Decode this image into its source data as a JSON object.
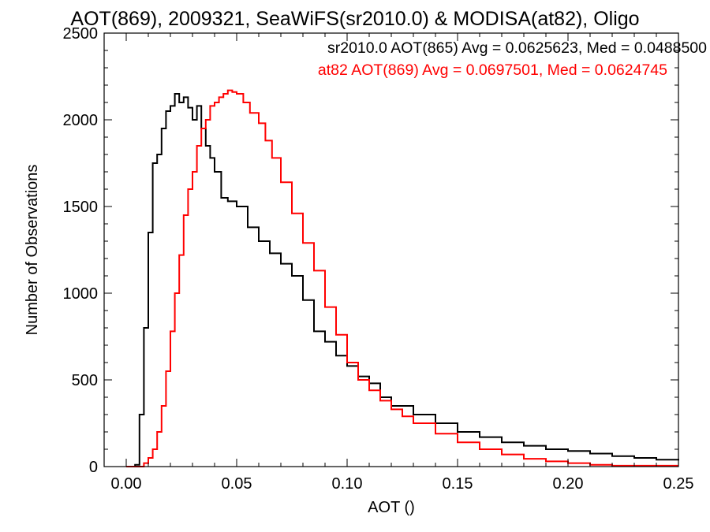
{
  "chart_data": {
    "type": "line",
    "title": "AOT(869), 2009321, SeaWiFS(sr2010.0) & MODISA(at82), Oligo",
    "xlabel": "AOT ()",
    "ylabel": "Number of Observations",
    "xlim": [
      -0.01,
      0.25
    ],
    "ylim": [
      0,
      2500
    ],
    "x_ticks": [
      0.0,
      0.05,
      0.1,
      0.15,
      0.2,
      0.25
    ],
    "x_tick_labels": [
      "0.00",
      "0.05",
      "0.10",
      "0.15",
      "0.20",
      "0.25"
    ],
    "y_ticks": [
      0,
      500,
      1000,
      1500,
      2000,
      2500
    ],
    "y_tick_labels": [
      "0",
      "500",
      "1000",
      "1500",
      "2000",
      "2500"
    ],
    "grid": false,
    "legend_placement": "top-right",
    "series": [
      {
        "name": "sr2010.0",
        "legend_text": "sr2010.0 AOT(865) Avg = 0.0625623, Med = 0.0488500",
        "color": "#000000",
        "x": [
          0.0,
          0.002,
          0.004,
          0.006,
          0.008,
          0.01,
          0.012,
          0.014,
          0.016,
          0.018,
          0.02,
          0.022,
          0.024,
          0.026,
          0.028,
          0.03,
          0.032,
          0.034,
          0.036,
          0.038,
          0.04,
          0.043,
          0.046,
          0.05,
          0.055,
          0.06,
          0.065,
          0.07,
          0.075,
          0.08,
          0.085,
          0.09,
          0.095,
          0.1,
          0.105,
          0.11,
          0.115,
          0.12,
          0.13,
          0.14,
          0.15,
          0.16,
          0.17,
          0.18,
          0.19,
          0.2,
          0.21,
          0.22,
          0.23,
          0.24,
          0.25
        ],
        "y": [
          0,
          0,
          10,
          300,
          800,
          1350,
          1750,
          1800,
          1950,
          2050,
          2080,
          2150,
          2100,
          2130,
          2070,
          2000,
          2080,
          1950,
          1850,
          1780,
          1700,
          1550,
          1530,
          1500,
          1380,
          1300,
          1230,
          1170,
          1100,
          960,
          780,
          720,
          640,
          580,
          520,
          480,
          400,
          350,
          300,
          250,
          200,
          170,
          140,
          120,
          100,
          90,
          75,
          60,
          50,
          40,
          35
        ]
      },
      {
        "name": "at82",
        "legend_text": "at82 AOT(869) Avg = 0.0697501, Med = 0.0624745",
        "color": "#ff0000",
        "x": [
          0.0,
          0.005,
          0.008,
          0.01,
          0.012,
          0.014,
          0.016,
          0.018,
          0.02,
          0.022,
          0.024,
          0.026,
          0.028,
          0.03,
          0.032,
          0.034,
          0.036,
          0.038,
          0.04,
          0.042,
          0.044,
          0.046,
          0.048,
          0.05,
          0.053,
          0.056,
          0.06,
          0.063,
          0.066,
          0.07,
          0.075,
          0.08,
          0.085,
          0.09,
          0.095,
          0.1,
          0.105,
          0.11,
          0.115,
          0.12,
          0.125,
          0.13,
          0.14,
          0.15,
          0.16,
          0.17,
          0.18,
          0.19,
          0.2,
          0.21,
          0.22,
          0.25
        ],
        "y": [
          0,
          0,
          20,
          50,
          100,
          200,
          350,
          550,
          780,
          1000,
          1220,
          1450,
          1600,
          1700,
          1850,
          1950,
          2000,
          2080,
          2100,
          2130,
          2150,
          2170,
          2160,
          2150,
          2100,
          2040,
          1980,
          1880,
          1780,
          1640,
          1460,
          1290,
          1130,
          920,
          760,
          600,
          500,
          440,
          380,
          330,
          290,
          250,
          190,
          140,
          100,
          70,
          45,
          30,
          20,
          10,
          5,
          5
        ]
      }
    ]
  }
}
